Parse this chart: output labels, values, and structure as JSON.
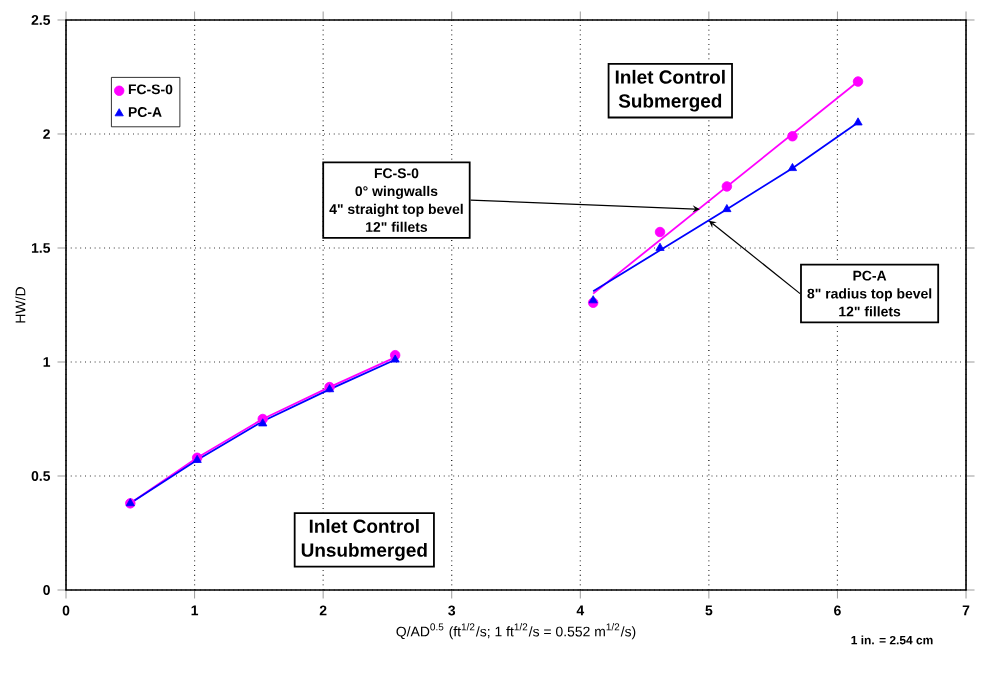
{
  "chart_data": {
    "type": "line",
    "xlabel": "Q/AD$^{0.5}$ (ft$^{1/2}$/s; 1 ft$^{1/2}$/s = 0.552 m$^{1/2}$/s)",
    "ylabel": "HW/D",
    "series": [
      {
        "name": "FC-S-0",
        "type": "scatter",
        "marker": "circle",
        "color": "#ff00ff",
        "x": [
          0.5,
          1.02,
          1.53,
          2.05,
          2.56,
          4.1,
          4.62,
          5.14,
          5.65,
          6.16
        ],
        "values": [
          0.38,
          0.58,
          0.75,
          0.89,
          1.03,
          1.26,
          1.57,
          1.77,
          1.99,
          2.23
        ]
      },
      {
        "name": "PC-A",
        "type": "scatter",
        "marker": "triangle",
        "color": "#0000ff",
        "x": [
          0.5,
          1.02,
          1.53,
          2.05,
          2.56,
          4.1,
          4.62,
          5.14,
          5.65,
          6.16
        ],
        "values": [
          0.38,
          0.57,
          0.73,
          0.88,
          1.01,
          1.27,
          1.5,
          1.67,
          1.85,
          2.05
        ]
      },
      {
        "color": "#ff00ff",
        "x": [
          0.5,
          1.02,
          1.53,
          2.05,
          2.56
        ],
        "values": [
          0.38,
          0.58,
          0.75,
          0.89,
          1.02
        ]
      },
      {
        "color": "#0000ff",
        "x": [
          0.5,
          1.02,
          1.53,
          2.05,
          2.56
        ],
        "values": [
          0.38,
          0.57,
          0.74,
          0.88,
          1.01
        ]
      },
      {
        "color": "#ff00ff",
        "x": [
          4.1,
          6.16
        ],
        "values": [
          1.3,
          2.23
        ]
      },
      {
        "color": "#0000ff",
        "x": [
          4.1,
          4.62,
          5.14,
          5.65,
          6.16
        ],
        "values": [
          1.31,
          1.49,
          1.67,
          1.85,
          2.05
        ]
      }
    ],
    "annotations": [
      "Inlet Control",
      "Submerged",
      "Inlet Control",
      "Unsubmerged",
      "FC-S-0",
      "0° wingwalls",
      {
        "text": "4\" straight top bevel",
        "x": 4.93,
        "y": 1.67
      },
      "12\" fillets",
      "PC-A",
      {
        "text": "8\" radius top bevel",
        "x": 5.0,
        "y": 1.62
      },
      "12\" fillets",
      "1 in. = 2.54 cm"
    ],
    "xlim": [
      0,
      7
    ],
    "ylim": [
      0,
      2.5
    ],
    "xticks": [
      0,
      1,
      2,
      3,
      4,
      5,
      6,
      7
    ],
    "yticks": [
      0,
      0.5,
      1,
      1.5,
      2,
      2.5
    ],
    "grid": true,
    "legend": "top left"
  }
}
